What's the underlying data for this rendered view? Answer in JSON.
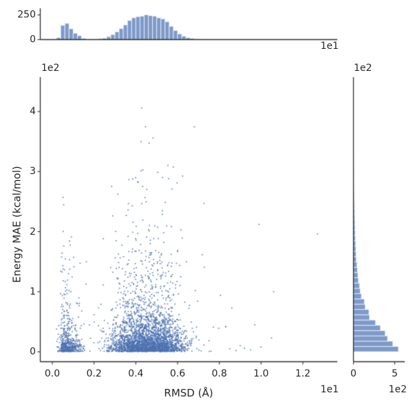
{
  "figure": {
    "title": "",
    "background": "#ffffff"
  },
  "colors": {
    "bar_fill": "#7d9ac9",
    "bar_edge": "#ffffff",
    "point": "#4c72b0",
    "spine": "#2b2b2b",
    "text": "#262626"
  },
  "main_plot": {
    "xlabel": "RMSD (Å)",
    "ylabel": "Energy MAE (kcal/mol)",
    "x_offset_label": "1e1",
    "y_offset_label": "1e2",
    "x_ticks": [
      {
        "v": 0.0,
        "label": "0.0"
      },
      {
        "v": 0.2,
        "label": "0.2"
      },
      {
        "v": 0.4,
        "label": "0.4"
      },
      {
        "v": 0.6,
        "label": "0.6"
      },
      {
        "v": 0.8,
        "label": "0.8"
      },
      {
        "v": 1.0,
        "label": "1.0"
      },
      {
        "v": 1.2,
        "label": "1.2"
      }
    ],
    "y_ticks": [
      {
        "v": 0,
        "label": "0"
      },
      {
        "v": 1,
        "label": "1"
      },
      {
        "v": 2,
        "label": "2"
      },
      {
        "v": 3,
        "label": "3"
      },
      {
        "v": 4,
        "label": "4"
      }
    ]
  },
  "top_hist": {
    "y_ticks": [
      {
        "v": 0,
        "label": "0"
      },
      {
        "v": 250,
        "label": "250"
      }
    ],
    "offset_label": "1e1"
  },
  "right_hist": {
    "x_ticks": [
      {
        "v": 0,
        "label": "0"
      },
      {
        "v": 500,
        "label": "5"
      }
    ],
    "offset_label": "1e2",
    "y_offset_label": "1e2"
  },
  "chart_data": {
    "type": "scatter",
    "title": "",
    "xlabel": "RMSD (Å)",
    "ylabel": "Energy MAE (kcal/mol)",
    "x_units_multiplier": 10,
    "y_units_multiplier": 100,
    "xlim": [
      -0.05,
      1.37
    ],
    "ylim": [
      -0.17,
      4.58
    ],
    "legend": false,
    "grid": false,
    "x_marginal_hist": {
      "bin_width": 0.02,
      "ylim": [
        0,
        318
      ],
      "bins": [
        [
          0.02,
          20
        ],
        [
          0.04,
          145
        ],
        [
          0.06,
          165
        ],
        [
          0.08,
          110
        ],
        [
          0.1,
          65
        ],
        [
          0.12,
          40
        ],
        [
          0.14,
          12
        ],
        [
          0.16,
          4
        ],
        [
          0.18,
          2
        ],
        [
          0.2,
          3
        ],
        [
          0.22,
          9
        ],
        [
          0.24,
          14
        ],
        [
          0.26,
          30
        ],
        [
          0.28,
          51
        ],
        [
          0.3,
          79
        ],
        [
          0.32,
          112
        ],
        [
          0.34,
          149
        ],
        [
          0.36,
          194
        ],
        [
          0.38,
          221
        ],
        [
          0.4,
          233
        ],
        [
          0.42,
          238
        ],
        [
          0.44,
          252
        ],
        [
          0.46,
          243
        ],
        [
          0.48,
          238
        ],
        [
          0.5,
          221
        ],
        [
          0.52,
          210
        ],
        [
          0.54,
          182
        ],
        [
          0.56,
          135
        ],
        [
          0.58,
          93
        ],
        [
          0.6,
          58
        ],
        [
          0.62,
          35
        ],
        [
          0.64,
          19
        ],
        [
          0.66,
          12
        ],
        [
          0.68,
          7
        ],
        [
          0.7,
          4
        ],
        [
          0.72,
          3
        ],
        [
          0.74,
          2
        ],
        [
          0.76,
          2
        ],
        [
          0.78,
          1
        ],
        [
          0.8,
          1
        ],
        [
          0.82,
          1
        ]
      ]
    },
    "y_marginal_hist": {
      "bin_width": 0.088,
      "start": 0,
      "xlim": [
        0,
        620
      ],
      "counts": [
        545,
        477,
        413,
        385,
        327,
        268,
        195,
        187,
        143,
        132,
        96,
        82,
        74,
        60,
        54,
        48,
        43,
        35,
        32,
        29,
        27,
        23,
        21,
        19,
        18,
        15,
        14,
        12,
        11,
        10,
        9,
        8,
        7,
        6,
        6,
        5,
        5,
        4,
        4,
        3,
        3,
        2,
        2,
        2,
        1,
        1,
        1,
        1
      ]
    },
    "scatter_model": {
      "seed": 7,
      "point_count_approx": 3630,
      "clusters": [
        {
          "name": "low-rmsd-cluster",
          "x_range": [
            0.0,
            0.2
          ],
          "mix": [
            [
              0.62,
              0.1
            ],
            [
              0.3,
              0.38
            ],
            [
              0.08,
              0.75
            ]
          ],
          "cap": 2.95
        },
        {
          "name": "gap",
          "x_range": [
            0.2,
            0.26
          ],
          "mix": [
            [
              0.7,
              0.3
            ],
            [
              0.3,
              0.8
            ]
          ],
          "cap": 2.4
        },
        {
          "name": "main-cluster",
          "x_range": [
            0.26,
            0.9
          ],
          "mix": [
            [
              0.58,
              0.16
            ],
            [
              0.3,
              0.45
            ],
            [
              0.12,
              1.05
            ]
          ],
          "cap": 4.4
        }
      ]
    },
    "outlier_points": [
      [
        0.83,
        0.42
      ],
      [
        0.85,
        0.05
      ],
      [
        0.86,
        0.73
      ],
      [
        0.88,
        0.02
      ],
      [
        0.9,
        0.1
      ],
      [
        0.92,
        0.06
      ],
      [
        0.95,
        0.03
      ],
      [
        0.97,
        0.45
      ],
      [
        0.99,
        2.12
      ],
      [
        1.0,
        0.08
      ],
      [
        1.05,
        0.23
      ],
      [
        1.06,
        1.0
      ],
      [
        1.27,
        1.96
      ]
    ]
  }
}
